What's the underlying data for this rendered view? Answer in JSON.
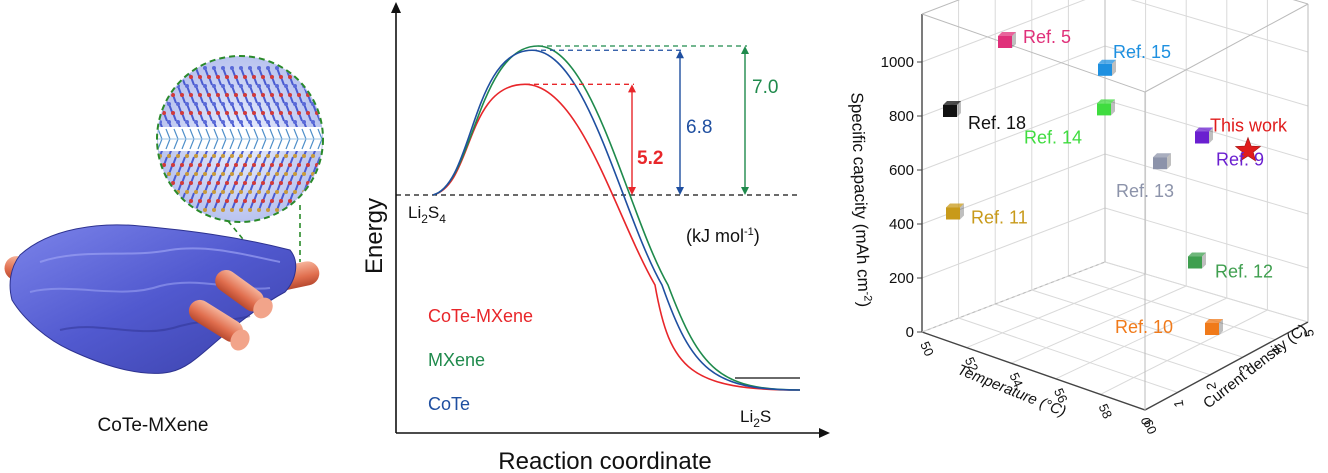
{
  "figure": {
    "left_panel": {
      "label": "CoTe-MXene"
    }
  },
  "chart_data": [
    {
      "type": "line",
      "xlabel": "Reaction coordinate",
      "ylabel": "Energy",
      "unit_label": "(kJ mol-1)",
      "start_label": "Li2S4",
      "end_label": "Li2S",
      "series": [
        {
          "name": "CoTe-MXene",
          "barrier": 5.2,
          "color": "#e8262a"
        },
        {
          "name": "MXene",
          "barrier": 7.0,
          "color": "#1f8a4c"
        },
        {
          "name": "CoTe",
          "barrier": 6.8,
          "color": "#1f4fa0"
        }
      ],
      "barrier_labels": [
        "5.2",
        "6.8",
        "7.0"
      ],
      "grid": false
    },
    {
      "type": "scatter",
      "zlabel": "Specific capacity (mAh cm-2)",
      "xlabel": "Temperature (°C)",
      "ylabel": "Current density (C)",
      "z_ticks": [
        "0",
        "200",
        "400",
        "600",
        "800",
        "1000"
      ],
      "x_ticks": [
        "50",
        "52",
        "54",
        "56",
        "58",
        "60"
      ],
      "y_ticks": [
        "0",
        "1",
        "2",
        "3",
        "4",
        "5"
      ],
      "grid": true,
      "points": [
        {
          "label": "Ref. 5",
          "capacity": 1000,
          "color": "#e0307a"
        },
        {
          "label": "Ref. 18",
          "capacity": 900,
          "color": "#111111"
        },
        {
          "label": "Ref. 15",
          "capacity": 860,
          "color": "#1e90e0"
        },
        {
          "label": "This work",
          "capacity": 850,
          "color": "#e01c1c",
          "marker": "star"
        },
        {
          "label": "Ref. 14",
          "capacity": 780,
          "color": "#3fdc3f"
        },
        {
          "label": "Ref. 9",
          "capacity": 750,
          "color": "#6a1fd0"
        },
        {
          "label": "Ref. 13",
          "capacity": 640,
          "color": "#8c93aa"
        },
        {
          "label": "Ref. 11",
          "capacity": 450,
          "color": "#c89a1a"
        },
        {
          "label": "Ref. 12",
          "capacity": 250,
          "color": "#3f9f4f"
        },
        {
          "label": "Ref. 10",
          "capacity": 0,
          "color": "#f07a1a"
        }
      ]
    }
  ]
}
